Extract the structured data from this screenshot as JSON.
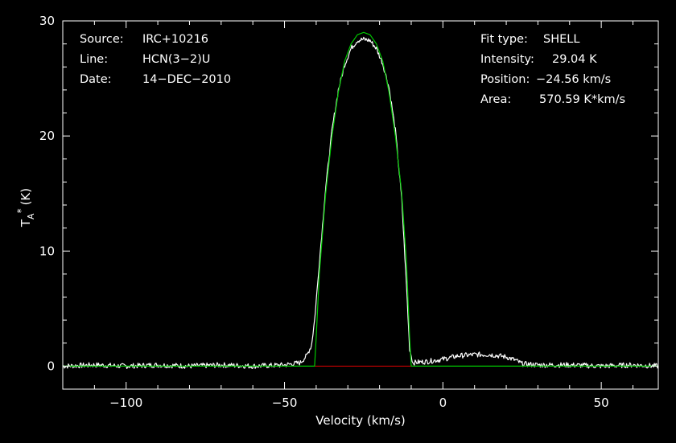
{
  "chart_data": {
    "type": "line",
    "xlabel": "Velocity (km/s)",
    "ylabel": {
      "base": "T",
      "sub": "A",
      "sup": "*",
      "unit": "(K)"
    },
    "xlim": [
      -120,
      68
    ],
    "ylim": [
      -2,
      30
    ],
    "xticks": [
      -100,
      -50,
      0,
      50
    ],
    "yticks": [
      0,
      10,
      20,
      30
    ],
    "grid": false,
    "colors": {
      "background": "#000000",
      "frame": "#ffffff",
      "spectrum": "#ffffff",
      "fit": "#00c800",
      "baseline": "#e00000"
    },
    "info_left": [
      {
        "label": "Source:",
        "value": "IRC+10216"
      },
      {
        "label": "Line:",
        "value": "HCN(3−2)U"
      },
      {
        "label": "Date:",
        "value": "14−DEC−2010"
      }
    ],
    "info_right": [
      {
        "label": "Fit type:",
        "value": "SHELL"
      },
      {
        "label": "Intensity:",
        "value": "29.04 K"
      },
      {
        "label": "Position:",
        "value": "−24.56 km/s"
      },
      {
        "label": "Area:",
        "value": "570.59 K*km/s"
      }
    ],
    "series": [
      {
        "role": "spectrum",
        "points": [
          [
            -120,
            0.0
          ],
          [
            -110,
            0.1
          ],
          [
            -100,
            0.0
          ],
          [
            -90,
            0.1
          ],
          [
            -80,
            0.0
          ],
          [
            -70,
            0.1
          ],
          [
            -60,
            0.0
          ],
          [
            -50,
            0.1
          ],
          [
            -45,
            0.3
          ],
          [
            -43,
            0.9
          ],
          [
            -41.5,
            1.8
          ],
          [
            -40.5,
            4.0
          ],
          [
            -39,
            9.0
          ],
          [
            -37,
            15.5
          ],
          [
            -35,
            20.5
          ],
          [
            -33,
            24.0
          ],
          [
            -31,
            26.2
          ],
          [
            -29,
            27.6
          ],
          [
            -27,
            28.3
          ],
          [
            -25,
            28.4
          ],
          [
            -23,
            28.3
          ],
          [
            -21,
            27.6
          ],
          [
            -19,
            26.3
          ],
          [
            -17,
            24.2
          ],
          [
            -15,
            20.5
          ],
          [
            -13,
            14.5
          ],
          [
            -11.5,
            7.0
          ],
          [
            -10.5,
            1.5
          ],
          [
            -9.5,
            0.3
          ],
          [
            -5,
            0.4
          ],
          [
            0,
            0.6
          ],
          [
            5,
            0.9
          ],
          [
            10,
            1.0
          ],
          [
            15,
            1.0
          ],
          [
            20,
            0.8
          ],
          [
            23,
            0.5
          ],
          [
            25,
            0.2
          ],
          [
            30,
            0.1
          ],
          [
            40,
            0.1
          ],
          [
            50,
            0.0
          ],
          [
            60,
            0.1
          ],
          [
            68,
            0.0
          ]
        ]
      },
      {
        "role": "fit",
        "points": [
          [
            -120,
            0
          ],
          [
            -40.5,
            0
          ],
          [
            -40,
            2.5
          ],
          [
            -39,
            8.0
          ],
          [
            -37,
            15.0
          ],
          [
            -35,
            20.0
          ],
          [
            -33,
            23.8
          ],
          [
            -31,
            26.5
          ],
          [
            -29,
            28.0
          ],
          [
            -27,
            28.8
          ],
          [
            -25,
            29.0
          ],
          [
            -23,
            28.8
          ],
          [
            -21,
            28.0
          ],
          [
            -19,
            26.5
          ],
          [
            -17,
            23.8
          ],
          [
            -15,
            20.0
          ],
          [
            -13,
            15.0
          ],
          [
            -11.5,
            9.0
          ],
          [
            -10.5,
            2.5
          ],
          [
            -10,
            0
          ],
          [
            68,
            0
          ]
        ]
      },
      {
        "role": "baseline",
        "points": [
          [
            -40.5,
            0
          ],
          [
            -9.5,
            0
          ]
        ]
      }
    ]
  }
}
